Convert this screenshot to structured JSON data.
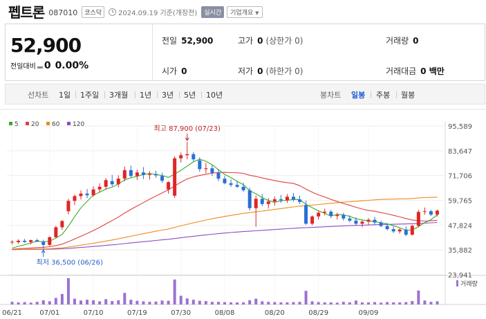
{
  "header": {
    "name": "펩트론",
    "code": "087010",
    "market": "코스닥",
    "date": "2024.09.19",
    "date_suffix": "기준(개장전)",
    "realtime_label": "실시간",
    "company_btn": "기업개요"
  },
  "price": {
    "current": "52,900",
    "change_label": "전일대비",
    "change_value": "0",
    "change_pct": "0.00%"
  },
  "info": {
    "prev_close_label": "전일",
    "prev_close": "52,900",
    "high_label": "고가",
    "high": "0",
    "high_sub": "(상한가 0)",
    "volume_label": "거래량",
    "volume": "0",
    "open_label": "시가",
    "open": "0",
    "low_label": "저가",
    "low": "0",
    "low_sub": "(하한가 0)",
    "amount_label": "거래대금",
    "amount": "0 백만"
  },
  "periods": {
    "line_label": "선차트",
    "line_items": [
      "1일",
      "1주일",
      "3개월",
      "1년",
      "3년",
      "5년",
      "10년"
    ],
    "candle_label": "봉차트",
    "candle_items": [
      "일봉",
      "주봉",
      "월봉"
    ],
    "active_candle": "일봉"
  },
  "colors": {
    "up": "#e02525",
    "down": "#2a6fd6",
    "ma5": "#3aa82a",
    "ma20": "#e04040",
    "ma60": "#f08a1c",
    "ma120": "#8a4bc4",
    "volume": "#9a72d0"
  },
  "chart_data": {
    "type": "candlestick",
    "legend": [
      {
        "name": "5",
        "color": "#3aa82a"
      },
      {
        "name": "20",
        "color": "#e04040"
      },
      {
        "name": "60",
        "color": "#f08a1c"
      },
      {
        "name": "120",
        "color": "#8a4bc4"
      }
    ],
    "y_ticks": [
      "95,589",
      "83,647",
      "71,706",
      "59,765",
      "47,824",
      "35,882",
      "23,941"
    ],
    "ylim": [
      23941,
      95589
    ],
    "x_ticks": [
      "06/21",
      "07/01",
      "07/10",
      "07/19",
      "07/30",
      "08/08",
      "08/20",
      "08/29",
      "09/09"
    ],
    "max_annotation": "최고 87,900 (07/23)",
    "min_annotation": "최저 36,500 (06/26)",
    "volume_label": "거래량",
    "candles": [
      {
        "o": 39500,
        "h": 40500,
        "l": 38500,
        "c": 39800
      },
      {
        "o": 39600,
        "h": 41000,
        "l": 38800,
        "c": 40300
      },
      {
        "o": 40300,
        "h": 41200,
        "l": 39300,
        "c": 39700
      },
      {
        "o": 39700,
        "h": 40800,
        "l": 38500,
        "c": 40600
      },
      {
        "o": 40600,
        "h": 41300,
        "l": 39700,
        "c": 39900
      },
      {
        "o": 39800,
        "h": 40800,
        "l": 36500,
        "c": 38300
      },
      {
        "o": 38300,
        "h": 42500,
        "l": 37800,
        "c": 42000
      },
      {
        "o": 42000,
        "h": 47500,
        "l": 41500,
        "c": 46800
      },
      {
        "o": 46800,
        "h": 50200,
        "l": 45500,
        "c": 49800
      },
      {
        "o": 54500,
        "h": 60500,
        "l": 53000,
        "c": 59500
      },
      {
        "o": 59500,
        "h": 62500,
        "l": 57500,
        "c": 61800
      },
      {
        "o": 61800,
        "h": 64500,
        "l": 60200,
        "c": 63000
      },
      {
        "o": 63000,
        "h": 65200,
        "l": 60800,
        "c": 62200
      },
      {
        "o": 62200,
        "h": 66500,
        "l": 61500,
        "c": 65000
      },
      {
        "o": 65000,
        "h": 68000,
        "l": 63500,
        "c": 66300
      },
      {
        "o": 66300,
        "h": 70500,
        "l": 65000,
        "c": 69500
      },
      {
        "o": 69000,
        "h": 72000,
        "l": 66500,
        "c": 67500
      },
      {
        "o": 67500,
        "h": 71800,
        "l": 66000,
        "c": 70200
      },
      {
        "o": 70200,
        "h": 76000,
        "l": 69000,
        "c": 74300
      },
      {
        "o": 74300,
        "h": 76500,
        "l": 70800,
        "c": 71500
      },
      {
        "o": 71500,
        "h": 74500,
        "l": 69500,
        "c": 73200
      },
      {
        "o": 73200,
        "h": 75800,
        "l": 70000,
        "c": 72000
      },
      {
        "o": 72000,
        "h": 73800,
        "l": 69800,
        "c": 72400
      },
      {
        "o": 72400,
        "h": 74000,
        "l": 70600,
        "c": 71800
      },
      {
        "o": 71500,
        "h": 73000,
        "l": 68200,
        "c": 69200
      },
      {
        "o": 65000,
        "h": 69000,
        "l": 63000,
        "c": 68500
      },
      {
        "o": 62000,
        "h": 81000,
        "l": 61000,
        "c": 80000
      },
      {
        "o": 80000,
        "h": 82800,
        "l": 78000,
        "c": 81500
      },
      {
        "o": 81500,
        "h": 87900,
        "l": 79500,
        "c": 82000
      },
      {
        "o": 82000,
        "h": 83000,
        "l": 78500,
        "c": 79500
      },
      {
        "o": 79000,
        "h": 80500,
        "l": 73500,
        "c": 74800
      },
      {
        "o": 74800,
        "h": 77800,
        "l": 72800,
        "c": 75200
      },
      {
        "o": 75200,
        "h": 76600,
        "l": 71500,
        "c": 73000
      },
      {
        "o": 73000,
        "h": 74800,
        "l": 69000,
        "c": 70200
      },
      {
        "o": 70200,
        "h": 71500,
        "l": 67500,
        "c": 68000
      },
      {
        "o": 68000,
        "h": 69800,
        "l": 66200,
        "c": 67200
      },
      {
        "o": 67200,
        "h": 69000,
        "l": 65800,
        "c": 66300
      },
      {
        "o": 66300,
        "h": 68200,
        "l": 63800,
        "c": 64600
      },
      {
        "o": 64600,
        "h": 65800,
        "l": 54800,
        "c": 56000
      },
      {
        "o": 56000,
        "h": 62000,
        "l": 47000,
        "c": 60500
      },
      {
        "o": 60500,
        "h": 62800,
        "l": 57000,
        "c": 58000
      },
      {
        "o": 58000,
        "h": 60800,
        "l": 55800,
        "c": 59200
      },
      {
        "o": 59200,
        "h": 61500,
        "l": 57200,
        "c": 60300
      },
      {
        "o": 60300,
        "h": 62300,
        "l": 58500,
        "c": 59800
      },
      {
        "o": 59800,
        "h": 62800,
        "l": 58500,
        "c": 61500
      },
      {
        "o": 61500,
        "h": 63300,
        "l": 59200,
        "c": 60200
      },
      {
        "o": 60200,
        "h": 62000,
        "l": 58000,
        "c": 59000
      },
      {
        "o": 57500,
        "h": 59500,
        "l": 48000,
        "c": 48500
      },
      {
        "o": 48500,
        "h": 52500,
        "l": 47800,
        "c": 52000
      },
      {
        "o": 52000,
        "h": 54500,
        "l": 50500,
        "c": 53800
      },
      {
        "o": 53800,
        "h": 55800,
        "l": 52500,
        "c": 54300
      },
      {
        "o": 54300,
        "h": 55200,
        "l": 51200,
        "c": 52200
      },
      {
        "o": 52200,
        "h": 53800,
        "l": 50500,
        "c": 52700
      },
      {
        "o": 52700,
        "h": 53800,
        "l": 50000,
        "c": 51000
      },
      {
        "o": 51000,
        "h": 52500,
        "l": 49200,
        "c": 50000
      },
      {
        "o": 50000,
        "h": 51600,
        "l": 47800,
        "c": 48500
      },
      {
        "o": 48500,
        "h": 50200,
        "l": 46800,
        "c": 49500
      },
      {
        "o": 49500,
        "h": 51200,
        "l": 48000,
        "c": 50400
      },
      {
        "o": 50400,
        "h": 51800,
        "l": 48200,
        "c": 49100
      },
      {
        "o": 49100,
        "h": 50000,
        "l": 46800,
        "c": 47400
      },
      {
        "o": 47400,
        "h": 48800,
        "l": 45300,
        "c": 45900
      },
      {
        "o": 45900,
        "h": 47200,
        "l": 44000,
        "c": 44800
      },
      {
        "o": 44800,
        "h": 46300,
        "l": 43700,
        "c": 45700
      },
      {
        "o": 45700,
        "h": 47200,
        "l": 42500,
        "c": 43200
      },
      {
        "o": 43200,
        "h": 48000,
        "l": 42800,
        "c": 47500
      },
      {
        "o": 47500,
        "h": 55200,
        "l": 46800,
        "c": 54200
      },
      {
        "o": 54200,
        "h": 56300,
        "l": 52800,
        "c": 54500
      },
      {
        "o": 54500,
        "h": 55200,
        "l": 52200,
        "c": 52900
      },
      {
        "o": 52900,
        "h": 55300,
        "l": 52000,
        "c": 54800
      }
    ],
    "volumes": [
      1.0,
      0.8,
      0.9,
      0.7,
      1.0,
      1.6,
      1.2,
      2.5,
      4.0,
      10.0,
      2.2,
      1.5,
      1.8,
      1.6,
      1.2,
      2.0,
      1.3,
      1.6,
      4.4,
      1.8,
      1.4,
      1.2,
      1.0,
      1.1,
      1.5,
      1.4,
      9.5,
      3.3,
      2.3,
      1.8,
      1.4,
      1.3,
      1.0,
      1.0,
      0.9,
      0.8,
      0.8,
      0.8,
      1.6,
      2.2,
      1.2,
      1.0,
      0.9,
      0.8,
      0.8,
      0.9,
      1.0,
      5.2,
      1.2,
      0.9,
      0.8,
      0.8,
      0.7,
      1.0,
      0.8,
      1.5,
      0.8,
      0.8,
      0.9,
      0.7,
      0.9,
      0.8,
      0.8,
      0.9,
      1.3,
      5.3,
      1.5,
      1.0,
      1.2
    ]
  }
}
